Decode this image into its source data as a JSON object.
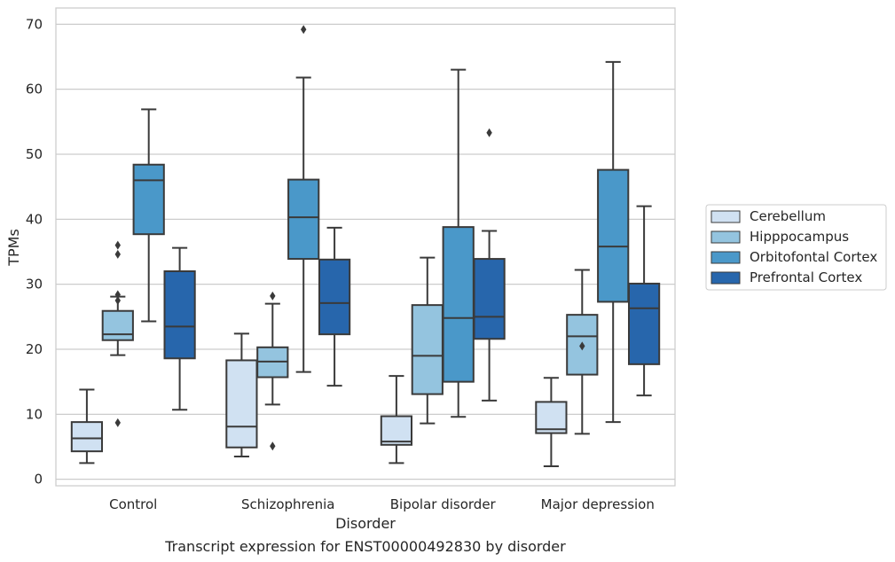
{
  "chart_data": {
    "type": "boxplot",
    "caption": "Transcript expression for ENST00000492830 by disorder",
    "xlabel": "Disorder",
    "ylabel": "TPMs",
    "ylim": [
      -1,
      72.5
    ],
    "yticks": [
      0,
      10,
      20,
      30,
      40,
      50,
      60,
      70
    ],
    "grid": "horizontal",
    "legend_placement": "right",
    "categories": [
      "Control",
      "Schizophrenia",
      "Bipolar disorder",
      "Major depression"
    ],
    "series": [
      {
        "name": "Cerebellum",
        "color": "#d0e1f2",
        "boxes": [
          {
            "min": 2.5,
            "q1": 4.3,
            "median": 6.3,
            "q3": 8.8,
            "max": 13.8,
            "outliers": []
          },
          {
            "min": 3.5,
            "q1": 4.9,
            "median": 8.1,
            "q3": 18.3,
            "max": 22.4,
            "outliers": []
          },
          {
            "min": 2.5,
            "q1": 5.3,
            "median": 5.8,
            "q3": 9.7,
            "max": 15.9,
            "outliers": []
          },
          {
            "min": 2.0,
            "q1": 7.1,
            "median": 7.7,
            "q3": 11.9,
            "max": 15.6,
            "outliers": []
          }
        ]
      },
      {
        "name": "Hipppocampus",
        "color": "#94c4df",
        "boxes": [
          {
            "min": 19.1,
            "q1": 21.4,
            "median": 22.3,
            "q3": 25.9,
            "max": 28.1,
            "outliers": [
              8.7,
              27.5,
              28.4,
              34.6,
              36.0
            ]
          },
          {
            "min": 11.5,
            "q1": 15.7,
            "median": 18.1,
            "q3": 20.3,
            "max": 27.0,
            "outliers": [
              5.1,
              28.2
            ]
          },
          {
            "min": 8.6,
            "q1": 13.1,
            "median": 19.0,
            "q3": 26.8,
            "max": 34.1,
            "outliers": []
          },
          {
            "min": 7.0,
            "q1": 16.1,
            "median": 22.0,
            "q3": 25.3,
            "max": 32.2,
            "outliers": [
              20.5
            ]
          }
        ]
      },
      {
        "name": "Orbitofontal Cortex",
        "color": "#4a98c9",
        "boxes": [
          {
            "min": 24.3,
            "q1": 37.7,
            "median": 46.0,
            "q3": 48.4,
            "max": 56.9,
            "outliers": []
          },
          {
            "min": 16.5,
            "q1": 33.9,
            "median": 40.3,
            "q3": 46.1,
            "max": 61.8,
            "outliers": [
              69.2
            ]
          },
          {
            "min": 9.6,
            "q1": 15.0,
            "median": 24.8,
            "q3": 38.8,
            "max": 63.0,
            "outliers": []
          },
          {
            "min": 8.8,
            "q1": 27.3,
            "median": 35.8,
            "q3": 47.6,
            "max": 64.2,
            "outliers": []
          }
        ]
      },
      {
        "name": "Prefrontal Cortex",
        "color": "#2766ac",
        "boxes": [
          {
            "min": 10.7,
            "q1": 18.6,
            "median": 23.5,
            "q3": 32.0,
            "max": 35.6,
            "outliers": []
          },
          {
            "min": 14.4,
            "q1": 22.3,
            "median": 27.1,
            "q3": 33.8,
            "max": 38.7,
            "outliers": []
          },
          {
            "min": 12.1,
            "q1": 21.6,
            "median": 25.0,
            "q3": 33.9,
            "max": 38.2,
            "outliers": [
              53.3
            ]
          },
          {
            "min": 12.9,
            "q1": 17.7,
            "median": 26.3,
            "q3": 30.1,
            "max": 42.0,
            "outliers": []
          }
        ]
      }
    ]
  }
}
